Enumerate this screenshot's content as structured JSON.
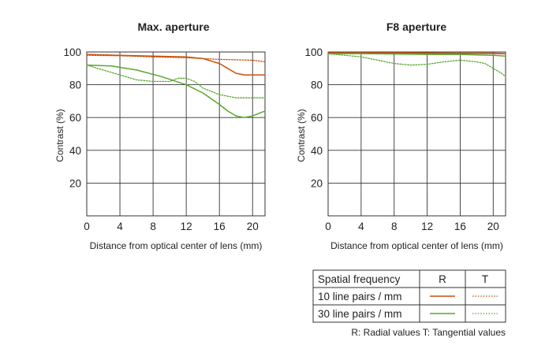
{
  "chart_data": [
    {
      "type": "line",
      "title": "Max. aperture",
      "xlabel": "Distance from optical center of lens (mm)",
      "ylabel": "Contrast (%)",
      "xlim": [
        0,
        21.5
      ],
      "ylim": [
        0,
        100
      ],
      "xticks": [
        0,
        4,
        8,
        12,
        16,
        20
      ],
      "yticks": [
        20,
        40,
        60,
        80,
        100
      ],
      "grid": true,
      "series": [
        {
          "key": "10R",
          "x": [
            0,
            4,
            8,
            12,
            14,
            16,
            17,
            18,
            19,
            20,
            21.5
          ],
          "y": [
            98.5,
            98,
            97.5,
            97,
            96,
            93,
            90,
            87,
            86,
            86,
            86
          ]
        },
        {
          "key": "10T",
          "x": [
            0,
            4,
            8,
            12,
            16,
            20,
            21.5
          ],
          "y": [
            98,
            97.7,
            97,
            96.5,
            95.5,
            95,
            94
          ]
        },
        {
          "key": "30R",
          "x": [
            0,
            3,
            6,
            9,
            12,
            14,
            16,
            17,
            18,
            19,
            20,
            21.5
          ],
          "y": [
            92,
            91.5,
            89,
            85,
            80,
            75,
            68,
            64,
            61,
            60,
            61,
            64
          ]
        },
        {
          "key": "30T",
          "x": [
            0,
            2,
            4,
            6,
            8,
            10,
            11,
            12,
            13,
            14,
            16,
            18,
            20,
            21.5
          ],
          "y": [
            92,
            89,
            86,
            83,
            82,
            82,
            84,
            84,
            82,
            78,
            74,
            72,
            72,
            72
          ]
        }
      ]
    },
    {
      "type": "line",
      "title": "F8 aperture",
      "xlabel": "Distance from optical center of lens (mm)",
      "ylabel": "Contrast (%)",
      "xlim": [
        0,
        21.5
      ],
      "ylim": [
        0,
        100
      ],
      "xticks": [
        0,
        4,
        8,
        12,
        16,
        20
      ],
      "yticks": [
        20,
        40,
        60,
        80,
        100
      ],
      "grid": true,
      "series": [
        {
          "key": "10R",
          "x": [
            0,
            4,
            8,
            12,
            16,
            20,
            21.5
          ],
          "y": [
            99.5,
            99.5,
            99.5,
            99.4,
            99.3,
            99.3,
            99
          ]
        },
        {
          "key": "10T",
          "x": [
            0,
            4,
            8,
            12,
            16,
            20,
            21.5
          ],
          "y": [
            99.5,
            99.3,
            99.2,
            99,
            99,
            99,
            98.8
          ]
        },
        {
          "key": "30R",
          "x": [
            0,
            4,
            8,
            12,
            16,
            20,
            21.5
          ],
          "y": [
            99,
            99,
            98.8,
            98.5,
            98.5,
            98,
            97.5
          ]
        },
        {
          "key": "30T",
          "x": [
            0,
            2,
            4,
            6,
            8,
            10,
            12,
            14,
            16,
            18,
            19,
            20,
            21,
            21.5
          ],
          "y": [
            99,
            98,
            97,
            95,
            93,
            92,
            92.5,
            94,
            95,
            94,
            93,
            90,
            87,
            85
          ]
        }
      ]
    }
  ],
  "legend": {
    "header_label": "Spatial frequency",
    "col_r": "R",
    "col_t": "T",
    "rows": [
      {
        "label": "10 line pairs / mm",
        "color": "#c9510c"
      },
      {
        "label": "30 line pairs / mm",
        "color": "#5aa62d"
      }
    ],
    "footnote": "R: Radial values  T: Tangential values"
  },
  "colors": {
    "line_10": "#c9510c",
    "line_30": "#5aa62d",
    "grid": "#333333",
    "text": "#222222"
  }
}
